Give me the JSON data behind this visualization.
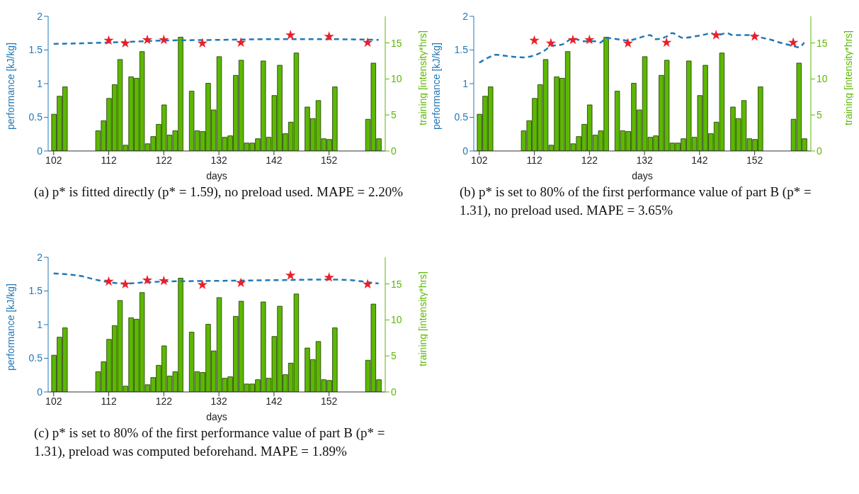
{
  "chart_data": [
    {
      "type": "bar",
      "xlabel": "days",
      "ylabel": "performance [kJ/kg]",
      "y2label": "training [intensity*hrs]",
      "xlim": [
        101,
        162.2
      ],
      "xticks": [
        102,
        112,
        122,
        132,
        142,
        152
      ],
      "ylim": [
        0,
        2
      ],
      "yticks": [
        0,
        0.5,
        1,
        1.5,
        2
      ],
      "y2lim": [
        0,
        18.7
      ],
      "y2ticks": [
        0,
        5,
        10,
        15
      ],
      "grid": false,
      "series": [
        {
          "axis": "y2",
          "color": "#5cb800",
          "x": [
            102,
            103,
            104,
            110,
            111,
            112,
            113,
            114,
            115,
            116,
            117,
            118,
            119,
            120,
            121,
            122,
            123,
            124,
            125,
            127,
            128,
            129,
            130,
            131,
            132,
            133,
            134,
            135,
            136,
            137,
            138,
            139,
            140,
            141,
            142,
            143,
            144,
            145,
            146,
            148,
            149,
            150,
            151,
            152,
            153,
            159,
            160,
            161
          ],
          "values": [
            5.1,
            7.6,
            8.9,
            2.8,
            4.2,
            7.3,
            9.2,
            12.7,
            0.8,
            10.3,
            10.1,
            13.8,
            1.0,
            2.0,
            3.7,
            6.4,
            2.2,
            2.8,
            15.8,
            8.3,
            2.8,
            2.7,
            9.4,
            5.7,
            13.1,
            1.9,
            2.1,
            10.5,
            12.6,
            1.1,
            1.1,
            1.7,
            12.5,
            1.9,
            7.7,
            11.9,
            2.4,
            4.0,
            13.6,
            6.1,
            4.5,
            7.0,
            1.7,
            1.6,
            8.9,
            4.4,
            12.2,
            1.7
          ]
        },
        {
          "type": "line",
          "color": "#2278b5",
          "line_style": "dashed",
          "marker": "none",
          "x": [
            102,
            112,
            122,
            132,
            142,
            152,
            161
          ],
          "values": [
            1.59,
            1.61,
            1.64,
            1.65,
            1.66,
            1.66,
            1.65
          ]
        },
        {
          "type": "scatter",
          "color": "#e8202a",
          "marker": "star",
          "x": [
            112,
            115,
            119,
            122,
            129,
            136,
            145,
            152,
            159
          ],
          "values": [
            1.64,
            1.6,
            1.65,
            1.65,
            1.6,
            1.61,
            1.72,
            1.7,
            1.61
          ]
        }
      ],
      "annotations": [
        "(a) p* is fitted directly (p* = 1.59), no preload used. MAPE = 2.20%"
      ]
    },
    {
      "type": "bar",
      "xlabel": "days",
      "ylabel": "performance [kJ/kg]",
      "y2label": "training [intensity*hrs]",
      "xlim": [
        101,
        162.2
      ],
      "xticks": [
        102,
        112,
        122,
        132,
        142,
        152
      ],
      "ylim": [
        0,
        2
      ],
      "yticks": [
        0,
        0.5,
        1,
        1.5,
        2
      ],
      "y2lim": [
        0,
        18.7
      ],
      "y2ticks": [
        0,
        5,
        10,
        15
      ],
      "grid": false,
      "series": [
        {
          "axis": "y2",
          "color": "#5cb800",
          "x": [
            102,
            103,
            104,
            110,
            111,
            112,
            113,
            114,
            115,
            116,
            117,
            118,
            119,
            120,
            121,
            122,
            123,
            124,
            125,
            127,
            128,
            129,
            130,
            131,
            132,
            133,
            134,
            135,
            136,
            137,
            138,
            139,
            140,
            141,
            142,
            143,
            144,
            145,
            146,
            148,
            149,
            150,
            151,
            152,
            153,
            159,
            160,
            161
          ],
          "values": [
            5.1,
            7.6,
            8.9,
            2.8,
            4.2,
            7.3,
            9.2,
            12.7,
            0.8,
            10.3,
            10.1,
            13.8,
            1.0,
            2.0,
            3.7,
            6.4,
            2.2,
            2.8,
            15.8,
            8.3,
            2.8,
            2.7,
            9.4,
            5.7,
            13.1,
            1.9,
            2.1,
            10.5,
            12.6,
            1.1,
            1.1,
            1.7,
            12.5,
            1.9,
            7.7,
            11.9,
            2.4,
            4.0,
            13.6,
            6.1,
            4.5,
            7.0,
            1.7,
            1.6,
            8.9,
            4.4,
            12.2,
            1.7
          ]
        },
        {
          "type": "line",
          "color": "#2278b5",
          "line_style": "dashed",
          "marker": "none",
          "x": [
            102,
            104,
            105,
            107,
            110,
            112,
            114,
            115,
            117,
            119,
            121,
            123,
            124,
            125,
            127,
            129,
            131,
            133,
            134,
            136,
            137,
            139,
            141,
            143,
            144,
            145,
            147,
            148,
            150,
            152,
            153,
            155,
            157,
            159,
            160,
            161
          ],
          "values": [
            1.31,
            1.4,
            1.43,
            1.41,
            1.39,
            1.42,
            1.5,
            1.56,
            1.58,
            1.67,
            1.63,
            1.63,
            1.61,
            1.68,
            1.66,
            1.64,
            1.68,
            1.72,
            1.66,
            1.7,
            1.75,
            1.68,
            1.7,
            1.73,
            1.75,
            1.72,
            1.75,
            1.72,
            1.72,
            1.72,
            1.69,
            1.65,
            1.6,
            1.56,
            1.54,
            1.61
          ]
        },
        {
          "type": "scatter",
          "color": "#e8202a",
          "marker": "star",
          "x": [
            112,
            115,
            119,
            122,
            129,
            136,
            145,
            152,
            159
          ],
          "values": [
            1.64,
            1.6,
            1.65,
            1.65,
            1.6,
            1.61,
            1.72,
            1.7,
            1.61
          ]
        }
      ],
      "annotations": [
        "(b) p* is set to 80% of the first performance value of part B (p* = 1.31), no preload used. MAPE = 3.65%"
      ]
    },
    {
      "type": "bar",
      "xlabel": "days",
      "ylabel": "performance [kJ/kg]",
      "y2label": "training [intensity*hrs]",
      "xlim": [
        101,
        162.2
      ],
      "xticks": [
        102,
        112,
        122,
        132,
        142,
        152
      ],
      "ylim": [
        0,
        2
      ],
      "yticks": [
        0,
        0.5,
        1,
        1.5,
        2
      ],
      "y2lim": [
        0,
        18.7
      ],
      "y2ticks": [
        0,
        5,
        10,
        15
      ],
      "grid": false,
      "series": [
        {
          "axis": "y2",
          "color": "#5cb800",
          "x": [
            102,
            103,
            104,
            110,
            111,
            112,
            113,
            114,
            115,
            116,
            117,
            118,
            119,
            120,
            121,
            122,
            123,
            124,
            125,
            127,
            128,
            129,
            130,
            131,
            132,
            133,
            134,
            135,
            136,
            137,
            138,
            139,
            140,
            141,
            142,
            143,
            144,
            145,
            146,
            148,
            149,
            150,
            151,
            152,
            153,
            159,
            160,
            161
          ],
          "values": [
            5.1,
            7.6,
            8.9,
            2.8,
            4.2,
            7.3,
            9.2,
            12.7,
            0.8,
            10.3,
            10.1,
            13.8,
            1.0,
            2.0,
            3.7,
            6.4,
            2.2,
            2.8,
            15.8,
            8.3,
            2.8,
            2.7,
            9.4,
            5.7,
            13.1,
            1.9,
            2.1,
            10.5,
            12.6,
            1.1,
            1.1,
            1.7,
            12.5,
            1.9,
            7.7,
            11.9,
            2.4,
            4.0,
            13.6,
            6.1,
            4.5,
            7.0,
            1.7,
            1.6,
            8.9,
            4.4,
            12.2,
            1.7
          ]
        },
        {
          "type": "line",
          "color": "#2278b5",
          "line_style": "dashed",
          "marker": "none",
          "x": [
            102,
            107,
            110,
            112,
            115,
            119,
            122,
            132,
            142,
            152,
            156,
            159,
            161
          ],
          "values": [
            1.76,
            1.72,
            1.66,
            1.63,
            1.61,
            1.63,
            1.64,
            1.65,
            1.66,
            1.67,
            1.66,
            1.63,
            1.61
          ]
        },
        {
          "type": "scatter",
          "color": "#e8202a",
          "marker": "star",
          "x": [
            112,
            115,
            119,
            122,
            129,
            136,
            145,
            152,
            159
          ],
          "values": [
            1.64,
            1.6,
            1.66,
            1.65,
            1.59,
            1.62,
            1.73,
            1.7,
            1.6
          ]
        }
      ],
      "annotations": [
        "(c) p* is set to 80% of the first performance value of part B (p* = 1.31), preload was computed beforehand. MAPE = 1.89%"
      ]
    }
  ]
}
